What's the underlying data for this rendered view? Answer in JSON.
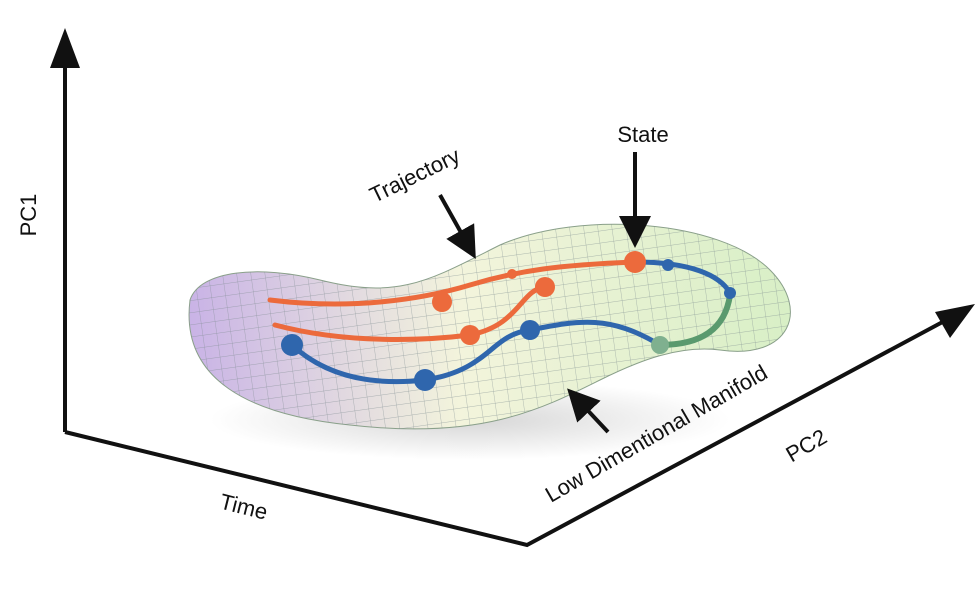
{
  "axes": {
    "vertical": "PC1",
    "depth": "PC2",
    "horizontal": "Time"
  },
  "labels": {
    "trajectory": "Trajectory",
    "state": "State",
    "manifold": "Low Dimentional Manifold"
  }
}
